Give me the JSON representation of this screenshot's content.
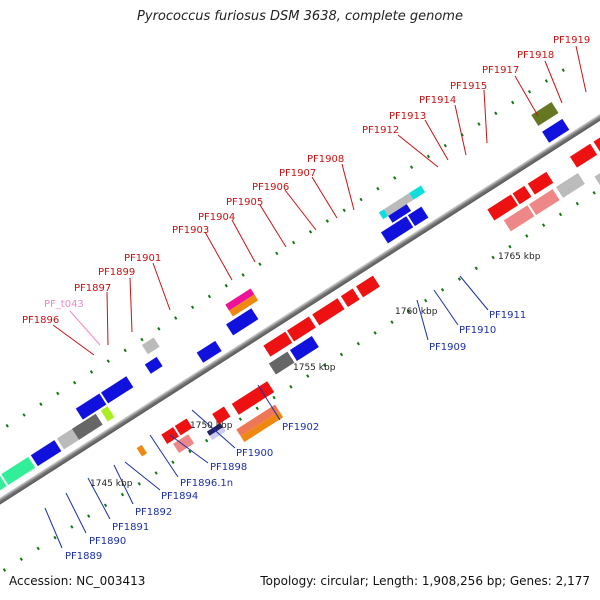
{
  "title": "Pyrococcus furiosus DSM 3638, complete genome",
  "accession": "Accession: NC_003413",
  "summary": "Topology: circular; Length: 1,908,256 bp; Genes: 2,177",
  "colors": {
    "red": "#ee1111",
    "red_label": "#cc1111",
    "blue": "#1111dd",
    "blue_label": "#1a2fa8",
    "pink": "#ee8888",
    "pink_label": "#ee88c8",
    "gray": "#bbbbbb",
    "darkgray": "#666666",
    "magenta": "#ee1199",
    "orange": "#ee8811",
    "cyan": "#11dddd",
    "green": "#117711",
    "olive": "#667722",
    "mint": "#33ee99",
    "lime": "#aaee22",
    "navy": "#222266",
    "coral": "#ee7755"
  },
  "scale_labels": [
    "1745 kbp",
    "1750 kbp",
    "1755 kbp",
    "1760 kbp",
    "1765 kbp"
  ],
  "top_genes": [
    "PF1896",
    "PF_t043",
    "PF1897",
    "PF1899",
    "PF1901",
    "PF1903",
    "PF1904",
    "PF1905",
    "PF1906",
    "PF1907",
    "PF1908",
    "PF1912",
    "PF1913",
    "PF1914",
    "PF1915",
    "PF1917",
    "PF1918",
    "PF1919"
  ],
  "bottom_genes": [
    "PF1889",
    "PF1890",
    "PF1891",
    "PF1892",
    "PF1894",
    "PF1896.1n",
    "PF1898",
    "PF1900",
    "PF1902",
    "PF1909",
    "PF1910",
    "PF1911"
  ]
}
